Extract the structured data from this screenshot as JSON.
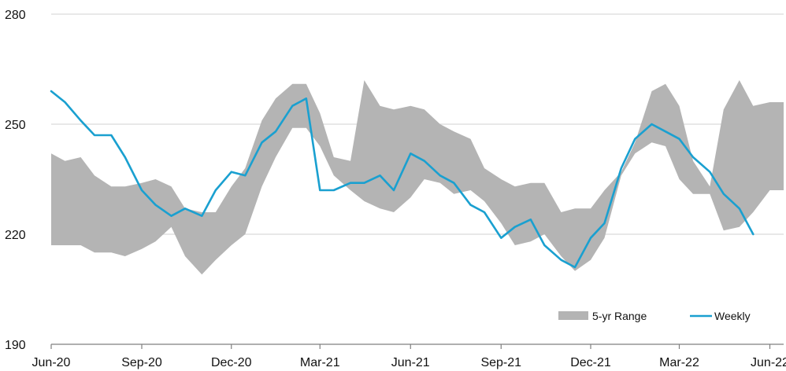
{
  "chart_data": {
    "type": "area",
    "title": "",
    "xlabel": "",
    "ylabel": "",
    "ylim": [
      190,
      280
    ],
    "yticks": [
      190,
      220,
      250,
      280
    ],
    "xlim": [
      "2020-06-01",
      "2022-06-15"
    ],
    "xticks": [
      "Jun-20",
      "Sep-20",
      "Dec-20",
      "Mar-21",
      "Jun-21",
      "Sep-21",
      "Dec-21",
      "Mar-22",
      "Jun-22"
    ],
    "grid": "horizontal",
    "legend_position": "bottom-right",
    "series": [
      {
        "name": "5-yr Range",
        "type": "band",
        "color": "#b4b4b4",
        "x": [
          "2020-06-01",
          "2020-06-15",
          "2020-07-01",
          "2020-07-15",
          "2020-08-01",
          "2020-08-15",
          "2020-09-01",
          "2020-09-15",
          "2020-10-01",
          "2020-10-15",
          "2020-11-01",
          "2020-11-15",
          "2020-12-01",
          "2020-12-15",
          "2021-01-01",
          "2021-01-15",
          "2021-02-01",
          "2021-02-15",
          "2021-03-01",
          "2021-03-15",
          "2021-04-01",
          "2021-04-15",
          "2021-05-01",
          "2021-05-15",
          "2021-06-01",
          "2021-06-15",
          "2021-07-01",
          "2021-07-15",
          "2021-08-01",
          "2021-08-15",
          "2021-09-01",
          "2021-09-15",
          "2021-10-01",
          "2021-10-15",
          "2021-11-01",
          "2021-11-15",
          "2021-12-01",
          "2021-12-15",
          "2022-01-01",
          "2022-01-15",
          "2022-02-01",
          "2022-02-15",
          "2022-03-01",
          "2022-03-15",
          "2022-04-01",
          "2022-04-15",
          "2022-05-01",
          "2022-05-15",
          "2022-06-01",
          "2022-06-15"
        ],
        "low": [
          217,
          217,
          217,
          215,
          215,
          214,
          216,
          218,
          222,
          214,
          209,
          213,
          217,
          220,
          233,
          241,
          249,
          249,
          244,
          236,
          232,
          229,
          227,
          226,
          230,
          235,
          234,
          231,
          232,
          229,
          223,
          217,
          218,
          220,
          214,
          210,
          213,
          219,
          236,
          242,
          245,
          244,
          235,
          231,
          231,
          221,
          222,
          226,
          232,
          232
        ],
        "high": [
          242,
          240,
          241,
          236,
          233,
          233,
          234,
          235,
          233,
          227,
          226,
          226,
          233,
          238,
          251,
          257,
          261,
          261,
          253,
          241,
          240,
          262,
          255,
          254,
          255,
          254,
          250,
          248,
          246,
          238,
          235,
          233,
          234,
          234,
          226,
          227,
          227,
          232,
          237,
          245,
          259,
          261,
          255,
          240,
          233,
          254,
          262,
          255,
          256,
          256
        ]
      },
      {
        "name": "Weekly",
        "type": "line",
        "color": "#1aa0d0",
        "x": [
          "2020-06-01",
          "2020-06-15",
          "2020-07-01",
          "2020-07-15",
          "2020-08-01",
          "2020-08-15",
          "2020-09-01",
          "2020-09-15",
          "2020-10-01",
          "2020-10-15",
          "2020-11-01",
          "2020-11-15",
          "2020-12-01",
          "2020-12-15",
          "2021-01-01",
          "2021-01-15",
          "2021-02-01",
          "2021-02-15",
          "2021-03-01",
          "2021-03-15",
          "2021-04-01",
          "2021-04-15",
          "2021-05-01",
          "2021-05-15",
          "2021-06-01",
          "2021-06-15",
          "2021-07-01",
          "2021-07-15",
          "2021-08-01",
          "2021-08-15",
          "2021-09-01",
          "2021-09-15",
          "2021-10-01",
          "2021-10-15",
          "2021-11-01",
          "2021-11-15",
          "2021-12-01",
          "2021-12-15",
          "2022-01-01",
          "2022-01-15",
          "2022-02-01",
          "2022-02-15",
          "2022-03-01",
          "2022-03-15",
          "2022-04-01",
          "2022-04-15",
          "2022-05-01",
          "2022-05-15"
        ],
        "values": [
          259,
          256,
          251,
          247,
          247,
          241,
          232,
          228,
          225,
          227,
          225,
          232,
          237,
          236,
          245,
          248,
          255,
          257,
          232,
          232,
          234,
          234,
          236,
          232,
          242,
          240,
          236,
          234,
          228,
          226,
          219,
          222,
          224,
          217,
          213,
          211,
          219,
          223,
          238,
          246,
          250,
          248,
          246,
          241,
          237,
          231,
          227,
          220
        ]
      }
    ]
  }
}
